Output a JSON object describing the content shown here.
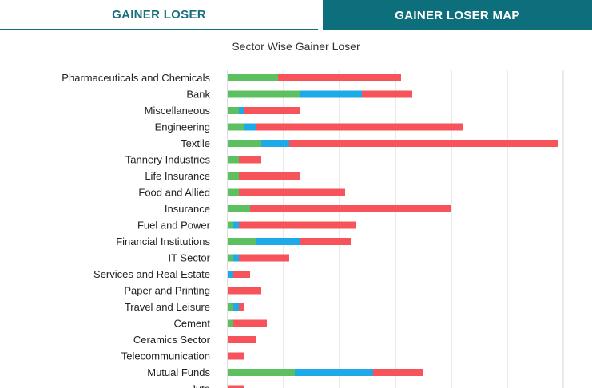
{
  "tabs": {
    "gainer_loser": "GAINER LOSER",
    "gainer_loser_map": "GAINER LOSER MAP"
  },
  "colors": {
    "tab_accent": "#0e6f7c",
    "gainer": "#5cc060",
    "unchanged": "#1ea9e8",
    "loser": "#f7535a",
    "grid": "#d6d6d6"
  },
  "chart_data": {
    "type": "bar",
    "orientation": "horizontal",
    "stacked": true,
    "title": "Sector Wise Gainer Loser",
    "categories": [
      "Pharmaceuticals and Chemicals",
      "Bank",
      "Miscellaneous",
      "Engineering",
      "Textile",
      "Tannery Industries",
      "Life Insurance",
      "Food and Allied",
      "Insurance",
      "Fuel and Power",
      "Financial Institutions",
      "IT Sector",
      "Services and Real Estate",
      "Paper and Printing",
      "Travel and Leisure",
      "Cement",
      "Ceramics Sector",
      "Telecommunication",
      "Mutual Funds",
      "Jute"
    ],
    "series": [
      {
        "color": "#5cc060",
        "values": [
          9,
          13,
          2,
          3,
          6,
          2,
          2,
          2,
          4,
          1,
          5,
          1,
          0,
          0,
          1,
          1,
          0,
          0,
          12,
          0
        ]
      },
      {
        "color": "#1ea9e8",
        "values": [
          0,
          11,
          1,
          2,
          5,
          0,
          0,
          0,
          0,
          1,
          8,
          1,
          1,
          0,
          1,
          0,
          0,
          0,
          14,
          0
        ]
      },
      {
        "color": "#f7535a",
        "values": [
          22,
          9,
          10,
          37,
          48,
          4,
          11,
          19,
          36,
          21,
          9,
          9,
          3,
          6,
          1,
          6,
          5,
          3,
          9,
          3
        ]
      }
    ],
    "xlim": [
      0,
      60
    ],
    "grid": true,
    "legend": "none"
  }
}
